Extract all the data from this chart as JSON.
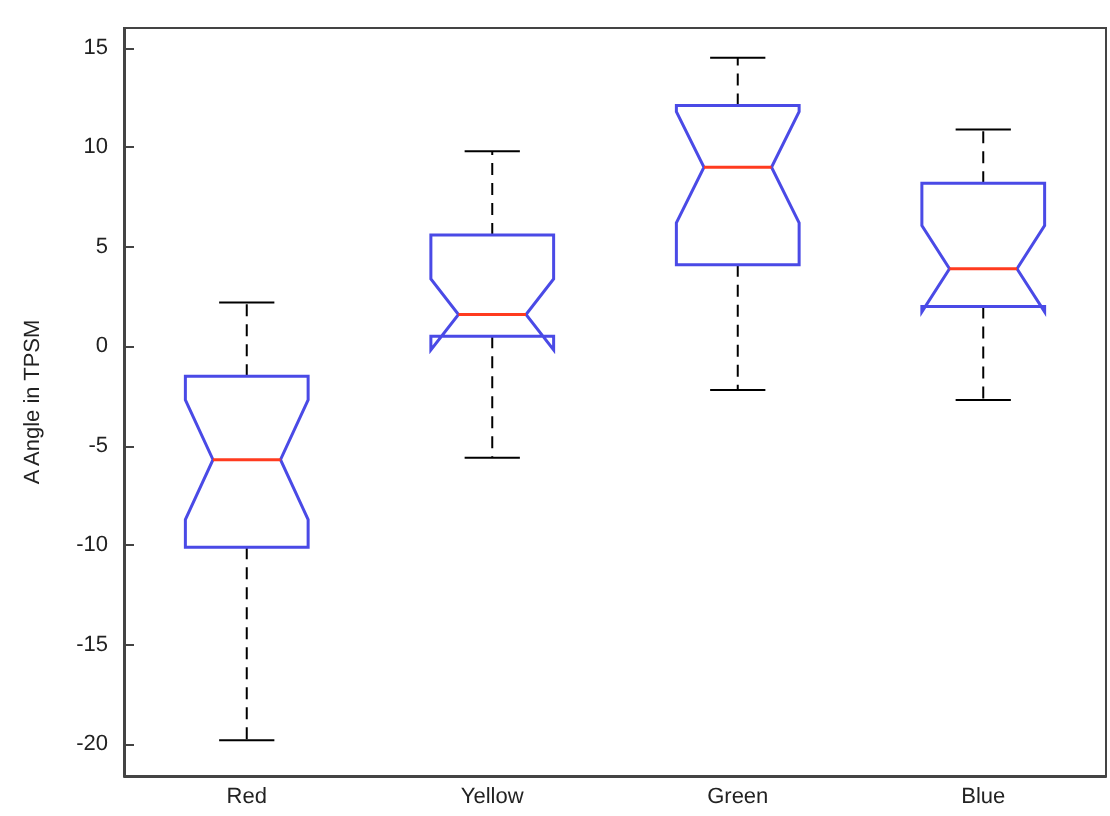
{
  "chart_data": {
    "type": "box",
    "ylabel": "A Angle in TPSM",
    "categories": [
      "Red",
      "Yellow",
      "Green",
      "Blue"
    ],
    "ylim": [
      -21.6,
      16
    ],
    "yticks": [
      -20,
      -15,
      -10,
      -5,
      0,
      5,
      10,
      15
    ],
    "grid": false,
    "series": [
      {
        "color": "#4a4ae6",
        "boxes": [
          {
            "low": -19.8,
            "q1": -10.1,
            "median": -5.7,
            "q3": -1.5,
            "high": 2.2
          },
          {
            "low": -5.6,
            "q1": 0.5,
            "median": 1.6,
            "q3": 5.6,
            "high": 9.8
          },
          {
            "low": -2.2,
            "q1": 4.1,
            "median": 9.0,
            "q3": 12.1,
            "high": 14.5
          },
          {
            "low": -2.7,
            "q1": 2.0,
            "median": 3.9,
            "q3": 8.2,
            "high": 10.9
          }
        ]
      }
    ]
  }
}
